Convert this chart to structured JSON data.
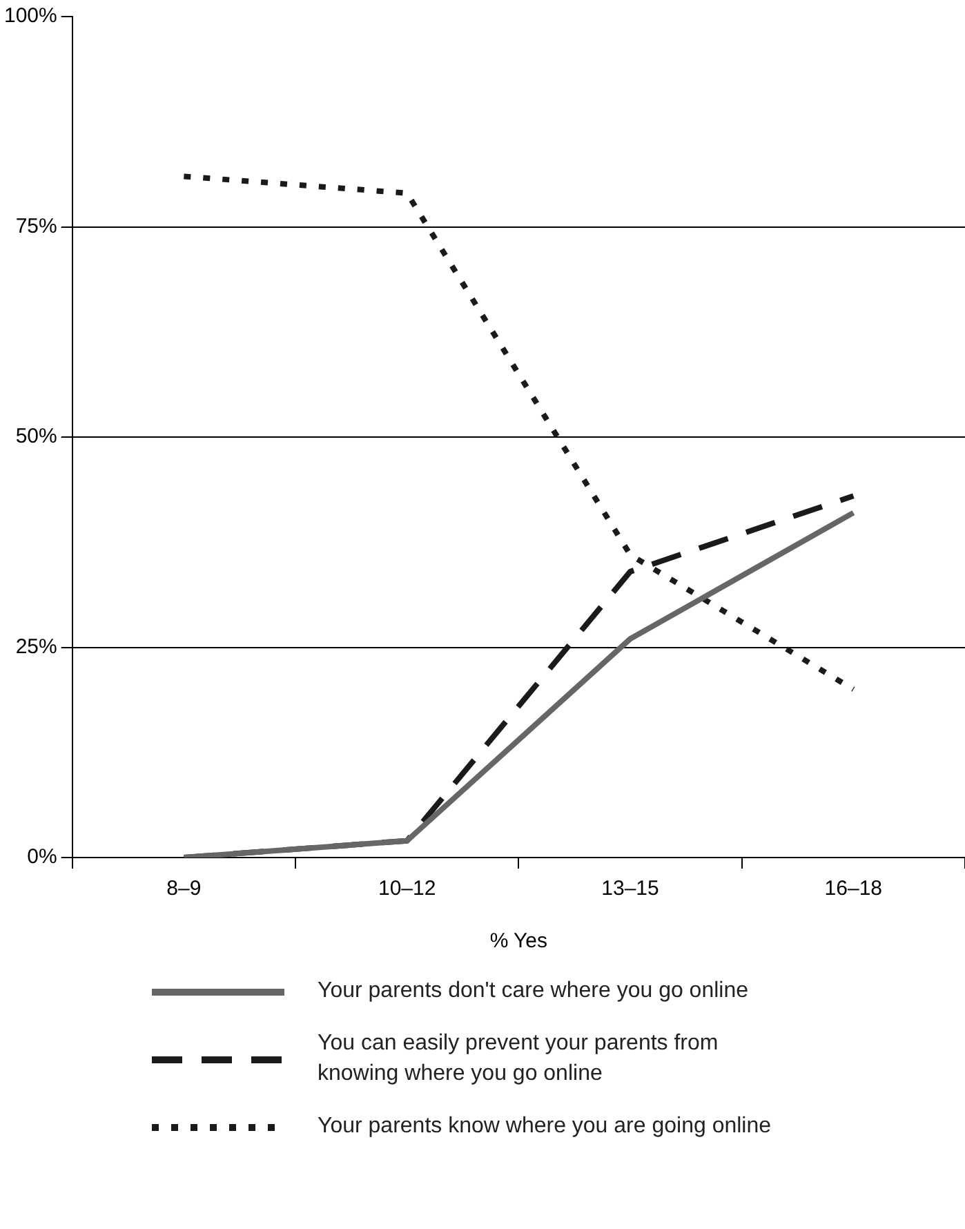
{
  "chart_data": {
    "type": "line",
    "xlabel": "% Yes",
    "categories": [
      "8–9",
      "10–12",
      "13–15",
      "16–18"
    ],
    "series": [
      {
        "name": "Your parents don't care where you go online",
        "color": "#666666",
        "line_style": "solid",
        "values": [
          0,
          2,
          26,
          41
        ]
      },
      {
        "name": "You can easily prevent your parents from knowing where you go online",
        "color": "#1a1a1a",
        "line_style": "dashed",
        "values": [
          0,
          2,
          34,
          43
        ]
      },
      {
        "name": "Your parents know where you are going online",
        "color": "#1a1a1a",
        "line_style": "dotted",
        "values": [
          81,
          79,
          36,
          20
        ]
      }
    ],
    "ylim": [
      0,
      100
    ],
    "yticks": [
      {
        "value": 0,
        "label": "0%"
      },
      {
        "value": 25,
        "label": "25%"
      },
      {
        "value": 50,
        "label": "50%"
      },
      {
        "value": 75,
        "label": "75%"
      },
      {
        "value": 100,
        "label": "100%"
      }
    ],
    "grid": "y",
    "legend": "bottom",
    "marker": "none"
  }
}
